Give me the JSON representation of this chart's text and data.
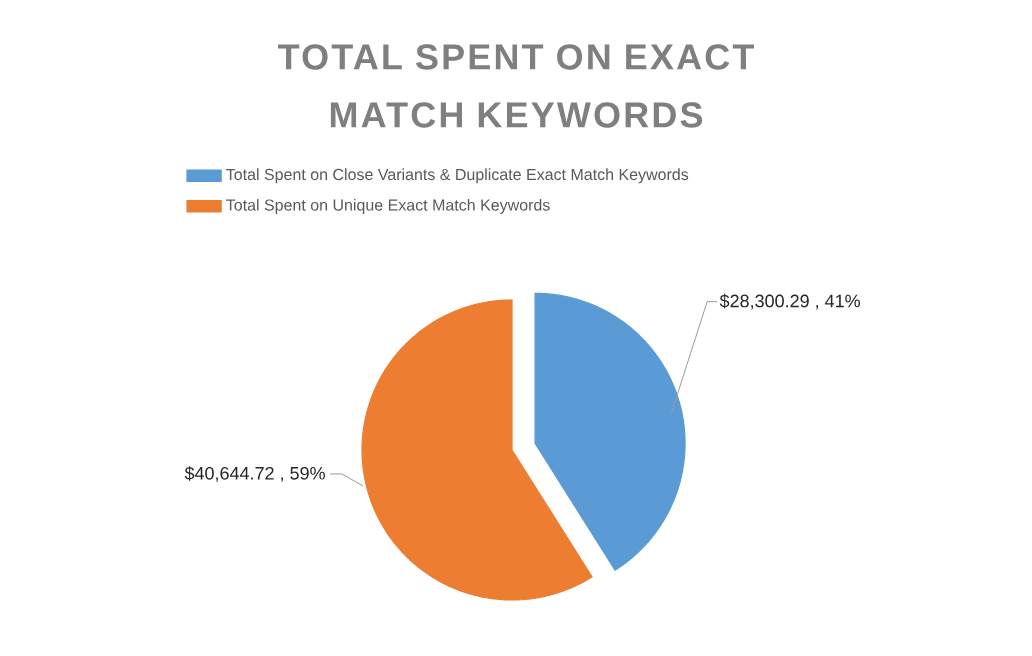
{
  "chart_data": {
    "type": "pie",
    "title": "TOTAL SPENT ON EXACT MATCH KEYWORDS",
    "categories": [
      "Total Spent on Close Variants & Duplicate Exact Match Keywords",
      "Total Spent on Unique Exact Match Keywords"
    ],
    "values": [
      28300.29,
      40644.72
    ],
    "colors": [
      "#5b9bd5",
      "#ed7d31"
    ],
    "value_labels": [
      "$28,300.29 , 41%",
      "$40,644.72 , 59%"
    ],
    "legend": "top"
  }
}
